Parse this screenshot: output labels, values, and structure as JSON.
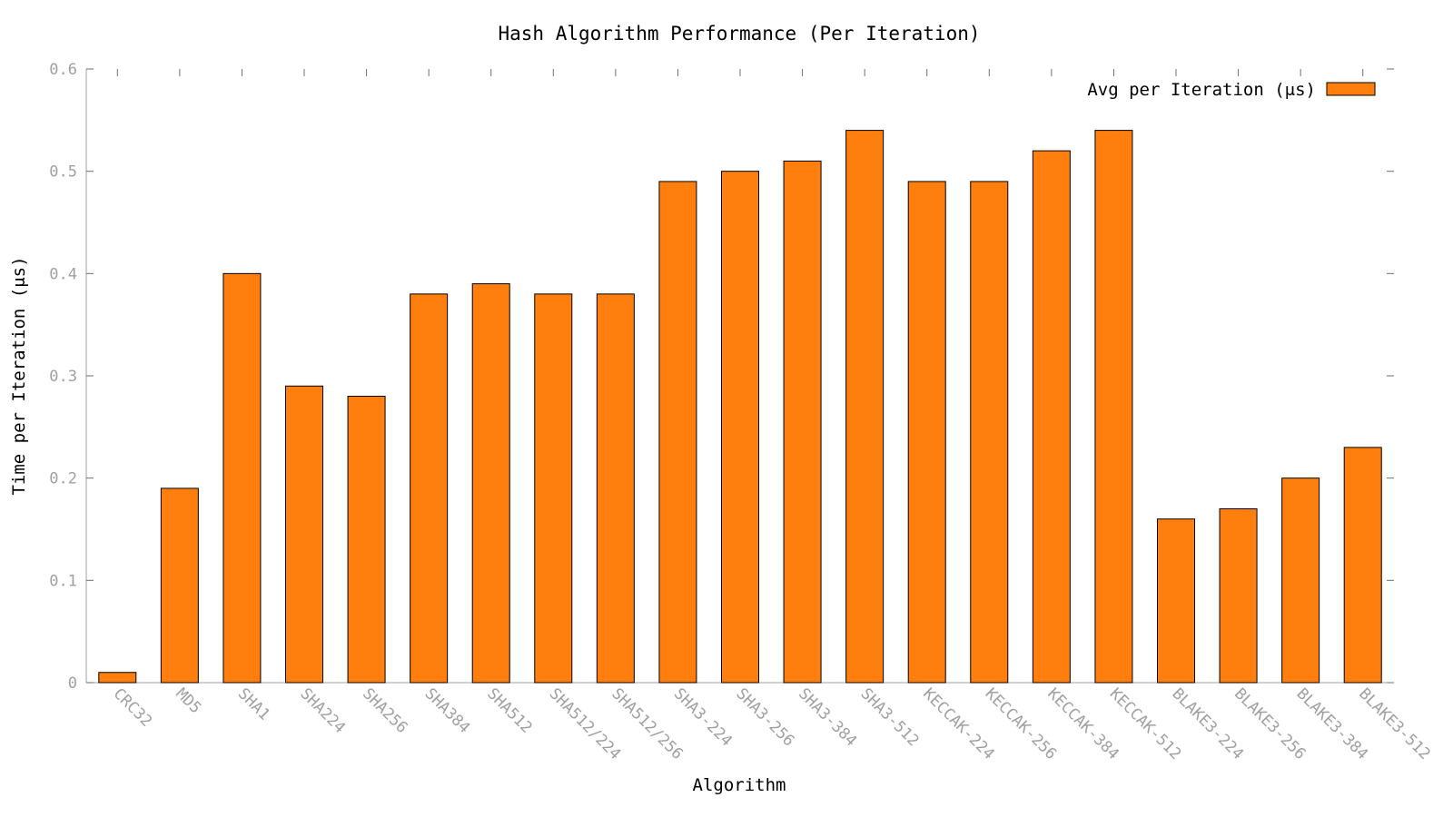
{
  "chart_data": {
    "type": "bar",
    "title": "Hash Algorithm Performance (Per Iteration)",
    "xlabel": "Algorithm",
    "ylabel": "Time per Iteration (μs)",
    "ylim": [
      0,
      0.6
    ],
    "yticks": [
      0,
      0.1,
      0.2,
      0.3,
      0.4,
      0.5,
      0.6
    ],
    "ytick_labels": [
      "0",
      "0.1",
      "0.2",
      "0.3",
      "0.4",
      "0.5",
      "0.6"
    ],
    "categories": [
      "CRC32",
      "MD5",
      "SHA1",
      "SHA224",
      "SHA256",
      "SHA384",
      "SHA512",
      "SHA512/224",
      "SHA512/256",
      "SHA3-224",
      "SHA3-256",
      "SHA3-384",
      "SHA3-512",
      "KECCAK-224",
      "KECCAK-256",
      "KECCAK-384",
      "KECCAK-512",
      "BLAKE3-224",
      "BLAKE3-256",
      "BLAKE3-384",
      "BLAKE3-512"
    ],
    "series": [
      {
        "name": "Avg per Iteration (μs)",
        "color": "#ff7f0e",
        "values": [
          0.01,
          0.19,
          0.4,
          0.29,
          0.28,
          0.38,
          0.39,
          0.38,
          0.38,
          0.49,
          0.5,
          0.51,
          0.54,
          0.49,
          0.49,
          0.52,
          0.54,
          0.16,
          0.17,
          0.2,
          0.23
        ]
      }
    ],
    "legend_position": "top-right",
    "grid": false
  }
}
